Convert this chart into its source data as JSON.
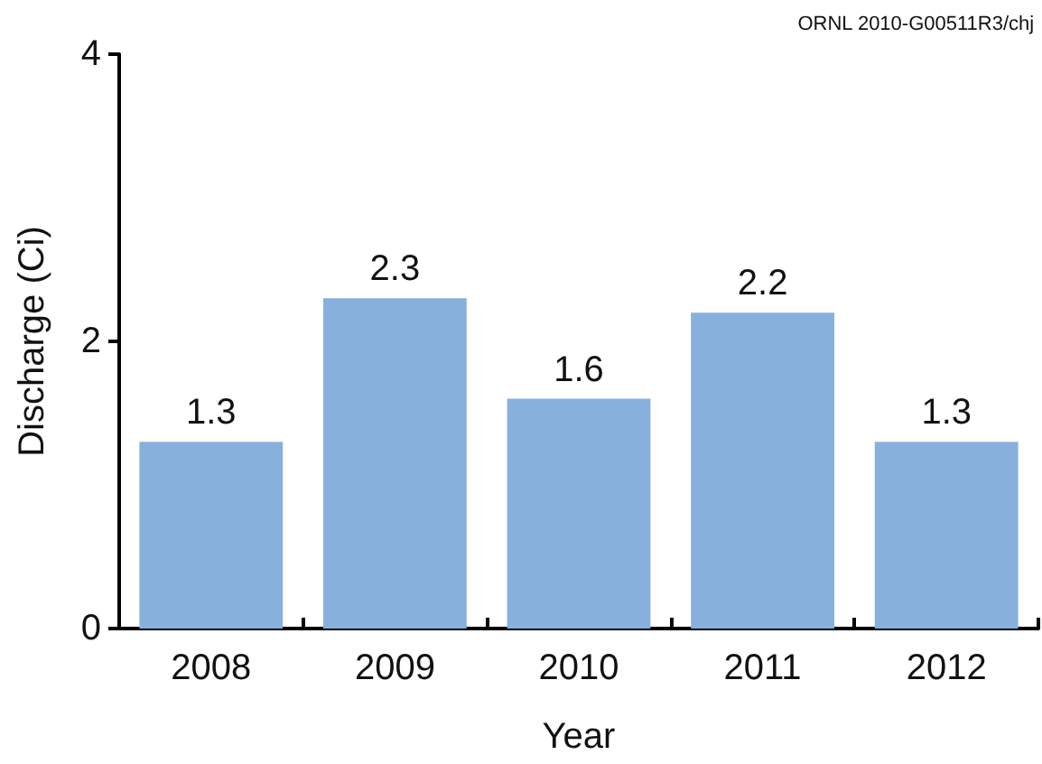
{
  "chart_data": {
    "type": "bar",
    "xlabel": "Year",
    "ylabel": "Discharge (Ci)",
    "categories": [
      "2008",
      "2009",
      "2010",
      "2011",
      "2012"
    ],
    "values": [
      1.3,
      2.3,
      1.6,
      2.2,
      1.3
    ],
    "color": "#88b0dd",
    "ylim": [
      0,
      4
    ],
    "yticks": [
      0,
      2,
      4
    ],
    "grid": false,
    "data_labels": true,
    "annotations": [
      "ORNL 2010-G00511R3/chj"
    ]
  }
}
